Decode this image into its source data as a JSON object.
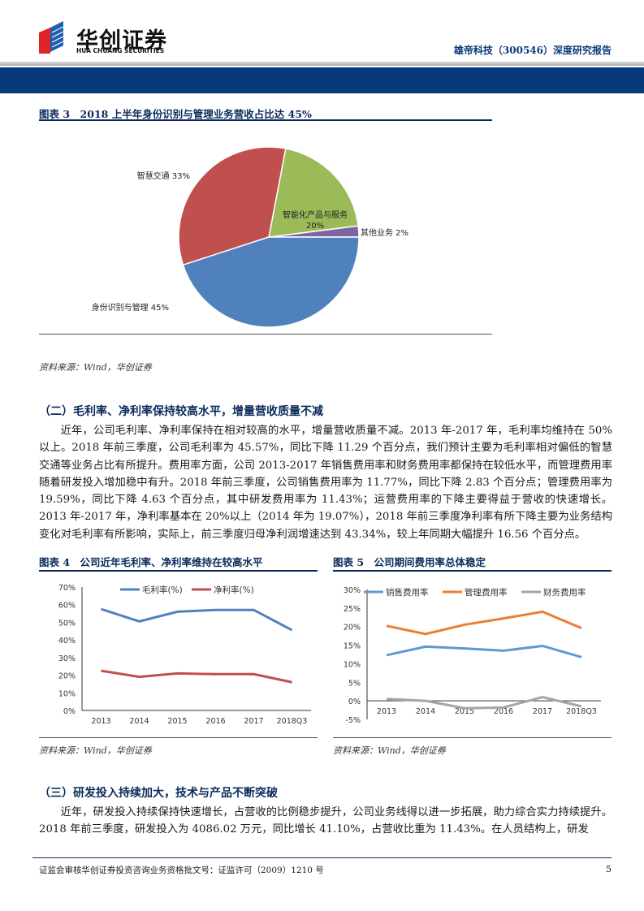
{
  "header": {
    "logo_cn": "华创证券",
    "logo_en": "HUA CHUANG SECURITIES",
    "report_title": "雄帝科技（300546）深度研究报告",
    "brand_color": "#063a7a"
  },
  "figure3": {
    "title": "图表 3　2018 上半年身份识别与管理业务营收占比达 45%",
    "source": "资料来源：Wind，华创证券",
    "chart_data": {
      "type": "pie",
      "slices": [
        {
          "label": "其他业务 2%",
          "value": 2,
          "color": "#8064A2"
        },
        {
          "label": "智能化产品与服务 20%",
          "value": 20,
          "color": "#9BBB59"
        },
        {
          "label": "智慧交通 33%",
          "value": 33,
          "color": "#C0504D"
        },
        {
          "label": "身份识别与管理 45%",
          "value": 45,
          "color": "#4F81BD"
        }
      ]
    }
  },
  "section2": {
    "heading": "（二）毛利率、净利率保持较高水平，增量营收质量不减",
    "paragraph": "近年，公司毛利率、净利率保持在相对较高的水平，增量营收质量不减。2013 年-2017 年，毛利率均维持在 50%以上。2018 年前三季度，公司毛利率为 45.57%，同比下降 11.29 个百分点，我们预计主要为毛利率相对偏低的智慧交通等业务占比有所提升。费用率方面，公司 2013-2017 年销售费用率和财务费用率都保持在较低水平，而管理费用率随着研发投入增加稳中有升。2018 年前三季度，公司销售费用率为 11.77%，同比下降 2.83 个百分点；管理费用率为 19.59%，同比下降 4.63 个百分点，其中研发费用率为 11.43%；运营费用率的下降主要得益于营收的快速增长。2013 年-2017 年，净利率基本在 20%以上（2014 年为 19.07%），2018 年前三季度净利率有所下降主要为业务结构变化对毛利率有所影响，实际上，前三季度归母净利润增速达到 43.34%，较上年同期大幅提升 16.56 个百分点。"
  },
  "figure4": {
    "title": "图表 4　公司近年毛利率、净利率维持在较高水平",
    "source": "资料来源：Wind，华创证券"
  },
  "figure5": {
    "title": "图表 5　公司期间费用率总体稳定",
    "source": "资料来源：Wind，华创证券"
  },
  "chart_data": [
    {
      "type": "line",
      "categories": [
        "2013",
        "2014",
        "2015",
        "2016",
        "2017",
        "2018Q3"
      ],
      "ylim": [
        0,
        70
      ],
      "yticks": [
        "0%",
        "10%",
        "20%",
        "30%",
        "40%",
        "50%",
        "60%",
        "70%"
      ],
      "legend": "top",
      "series": [
        {
          "name": "毛利率(%)",
          "color": "#4F81BD",
          "values": [
            57.5,
            50.5,
            56,
            57,
            57,
            45.57
          ]
        },
        {
          "name": "净利率(%)",
          "color": "#C0504D",
          "values": [
            22.5,
            19.07,
            21,
            20.6,
            20.6,
            16
          ]
        }
      ]
    },
    {
      "type": "line",
      "categories": [
        "2013",
        "2014",
        "2015",
        "2016",
        "2017",
        "2018Q3"
      ],
      "ylim": [
        -5,
        30
      ],
      "yticks": [
        "-5%",
        "0%",
        "5%",
        "10%",
        "15%",
        "20%",
        "25%",
        "30%"
      ],
      "legend": "top",
      "series": [
        {
          "name": "销售费用率",
          "color": "#5B9BD5",
          "values": [
            12.3,
            14.6,
            14.1,
            13.5,
            14.8,
            11.77
          ]
        },
        {
          "name": "管理费用率",
          "color": "#ED7D31",
          "values": [
            20.2,
            18,
            20.5,
            22.2,
            24,
            19.59
          ]
        },
        {
          "name": "财务费用率",
          "color": "#A5A5A5",
          "values": [
            0.5,
            0,
            -2,
            -1.8,
            1,
            -1.5
          ]
        }
      ]
    }
  ],
  "section3": {
    "heading": "（三）研发投入持续加大，技术与产品不断突破",
    "paragraph": "近年，研发投入持续保持快速增长，占营收的比例稳步提升，公司业务线得以进一步拓展，助力综合实力持续提升。2018 年前三季度，研发投入为 4086.02 万元，同比增长 41.10%，占营收比重为 11.43%。在人员结构上，研发"
  },
  "footer": {
    "text": "证监会审核华创证券投资咨询业务资格批文号：证监许可（2009）1210 号",
    "page": "5"
  }
}
